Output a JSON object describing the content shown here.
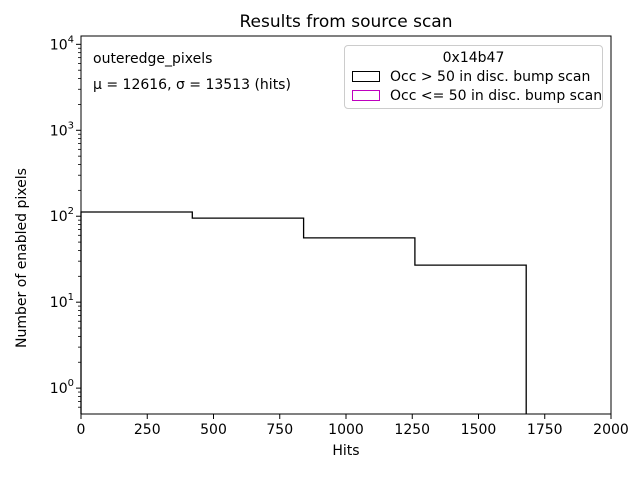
{
  "chart_data": {
    "type": "step-histogram",
    "title": "Results from source scan",
    "xlabel": "Hits",
    "ylabel": "Number of enabled pixels",
    "yscale": "log",
    "grid": false,
    "xlim": [
      0,
      2000
    ],
    "ylim": [
      0.5,
      12500
    ],
    "xticks": [
      0,
      250,
      500,
      750,
      1000,
      1250,
      1500,
      1750,
      2000
    ],
    "ytick_exponents": [
      0,
      1,
      2,
      3,
      4
    ],
    "legend_position": "upper right",
    "series": [
      {
        "name": "Occ > 50 in disc. bump scan",
        "color": "#000000",
        "bin_edges": [
          0,
          420,
          840,
          1260,
          1680
        ],
        "counts": [
          112,
          95,
          56,
          27
        ]
      },
      {
        "name": "Occ <= 50 in disc. bump scan",
        "color": "#bf00bf",
        "bin_edges": [],
        "counts": []
      }
    ]
  },
  "annotation": {
    "line1": "outeredge_pixels",
    "line2": "μ = 12616, σ = 13513 (hits)"
  },
  "legend": {
    "title": "0x14b47",
    "entries": [
      {
        "label": "Occ > 50 in disc. bump scan",
        "color": "#000000"
      },
      {
        "label": "Occ <= 50 in disc. bump scan",
        "color": "#bf00bf"
      }
    ]
  },
  "colors": {
    "spine": "#000000",
    "legend_border": "#cccccc",
    "background": "#ffffff"
  }
}
